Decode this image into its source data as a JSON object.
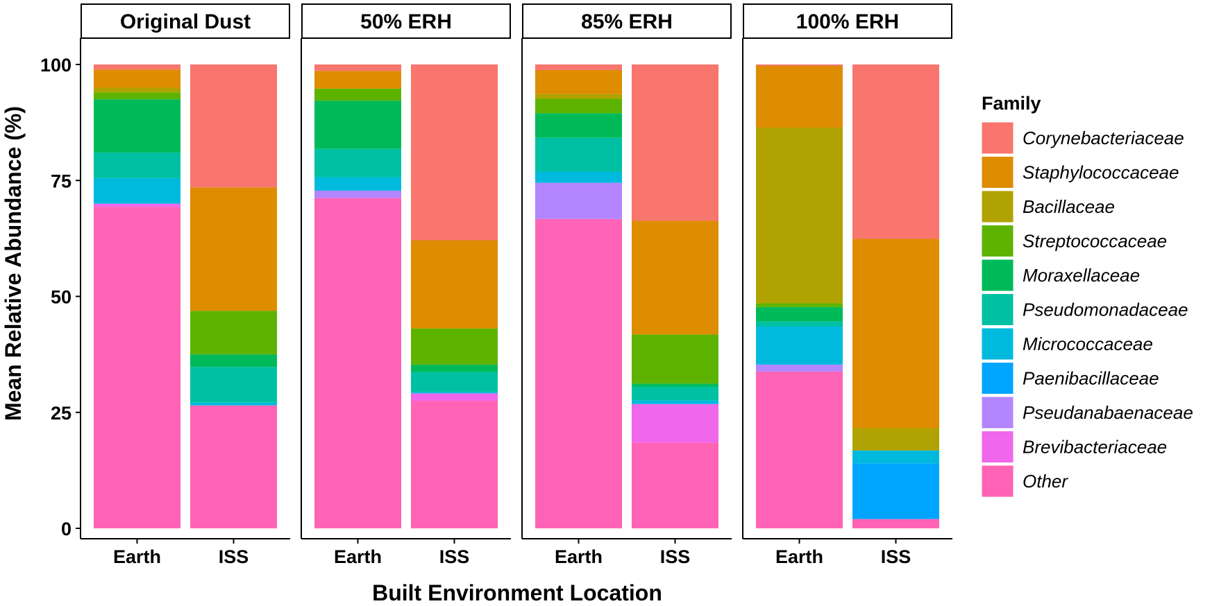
{
  "chart_data": {
    "type": "bar",
    "stacked": true,
    "xlabel": "Built Environment Location",
    "ylabel": "Mean Relative Abundance (%)",
    "ylim": [
      0,
      100
    ],
    "yticks": [
      "0",
      "25",
      "50",
      "75",
      "100"
    ],
    "categories": [
      "Earth",
      "ISS"
    ],
    "grid": false,
    "legend": {
      "title": "Family",
      "placement": "right",
      "entries": [
        {
          "name": "Corynebacteriaceae",
          "color": "#F8766D"
        },
        {
          "name": "Staphylococcaceae",
          "color": "#DE8C00"
        },
        {
          "name": "Bacillaceae",
          "color": "#B0A200"
        },
        {
          "name": "Streptococcaceae",
          "color": "#5EB300"
        },
        {
          "name": "Moraxellaceae",
          "color": "#00BA5A"
        },
        {
          "name": "Pseudomonadaceae",
          "color": "#00C0A3"
        },
        {
          "name": "Micrococcaceae",
          "color": "#00BADE"
        },
        {
          "name": "Paenibacillaceae",
          "color": "#00A5FF"
        },
        {
          "name": "Pseudanabaenaceae",
          "color": "#B385FF"
        },
        {
          "name": "Brevibacteriaceae",
          "color": "#EF67EB"
        },
        {
          "name": "Other",
          "color": "#FF63B6"
        }
      ]
    },
    "stack_order_bottom_to_top": [
      "Other",
      "Brevibacteriaceae",
      "Pseudanabaenaceae",
      "Paenibacillaceae",
      "Micrococcaceae",
      "Pseudomonadaceae",
      "Moraxellaceae",
      "Streptococcaceae",
      "Bacillaceae",
      "Staphylococcaceae",
      "Corynebacteriaceae"
    ],
    "panels": [
      {
        "name": "Original Dust",
        "bars": [
          {
            "category": "Earth",
            "values": {
              "Other": 69.3,
              "Brevibacteriaceae": 0.7,
              "Pseudanabaenaceae": 0.0,
              "Paenibacillaceae": 0.0,
              "Micrococcaceae": 5.5,
              "Pseudomonadaceae": 5.5,
              "Moraxellaceae": 11.5,
              "Streptococcaceae": 1.5,
              "Bacillaceae": 1.0,
              "Staphylococcaceae": 3.9,
              "Corynebacteriaceae": 1.1
            }
          },
          {
            "category": "ISS",
            "values": {
              "Other": 26.5,
              "Brevibacteriaceae": 0.0,
              "Pseudanabaenaceae": 0.0,
              "Paenibacillaceae": 0.0,
              "Micrococcaceae": 0.6,
              "Pseudomonadaceae": 7.7,
              "Moraxellaceae": 2.7,
              "Streptococcaceae": 9.4,
              "Bacillaceae": 0.0,
              "Staphylococcaceae": 26.6,
              "Corynebacteriaceae": 26.5
            }
          }
        ]
      },
      {
        "name": "50% ERH",
        "bars": [
          {
            "category": "Earth",
            "values": {
              "Other": 71.2,
              "Brevibacteriaceae": 0.0,
              "Pseudanabaenaceae": 1.6,
              "Paenibacillaceae": 0.0,
              "Micrococcaceae": 2.9,
              "Pseudomonadaceae": 6.1,
              "Moraxellaceae": 10.4,
              "Streptococcaceae": 2.6,
              "Bacillaceae": 0.0,
              "Staphylococcaceae": 3.8,
              "Corynebacteriaceae": 1.4
            }
          },
          {
            "category": "ISS",
            "values": {
              "Other": 27.5,
              "Brevibacteriaceae": 1.6,
              "Pseudanabaenaceae": 0.0,
              "Paenibacillaceae": 0.0,
              "Micrococcaceae": 0.3,
              "Pseudomonadaceae": 4.3,
              "Moraxellaceae": 1.6,
              "Streptococcaceae": 7.8,
              "Bacillaceae": 0.0,
              "Staphylococcaceae": 19.0,
              "Corynebacteriaceae": 37.9
            }
          }
        ]
      },
      {
        "name": "85% ERH",
        "bars": [
          {
            "category": "Earth",
            "values": {
              "Other": 66.7,
              "Brevibacteriaceae": 0.0,
              "Pseudanabaenaceae": 7.8,
              "Paenibacillaceae": 0.0,
              "Micrococcaceae": 2.4,
              "Pseudomonadaceae": 7.3,
              "Moraxellaceae": 5.3,
              "Streptococcaceae": 3.1,
              "Bacillaceae": 1.0,
              "Staphylococcaceae": 5.2,
              "Corynebacteriaceae": 1.2
            }
          },
          {
            "category": "ISS",
            "values": {
              "Other": 18.5,
              "Brevibacteriaceae": 8.3,
              "Pseudanabaenaceae": 0.0,
              "Paenibacillaceae": 0.0,
              "Micrococcaceae": 0.8,
              "Pseudomonadaceae": 2.9,
              "Moraxellaceae": 0.7,
              "Streptococcaceae": 10.6,
              "Bacillaceae": 0.0,
              "Staphylococcaceae": 24.5,
              "Corynebacteriaceae": 33.7
            }
          }
        ]
      },
      {
        "name": "100% ERH",
        "bars": [
          {
            "category": "Earth",
            "values": {
              "Other": 33.8,
              "Brevibacteriaceae": 0.0,
              "Pseudanabaenaceae": 1.5,
              "Paenibacillaceae": 0.0,
              "Micrococcaceae": 8.2,
              "Pseudomonadaceae": 1.1,
              "Moraxellaceae": 3.1,
              "Streptococcaceae": 0.8,
              "Bacillaceae": 37.9,
              "Staphylococcaceae": 13.3,
              "Corynebacteriaceae": 0.3
            }
          },
          {
            "category": "ISS",
            "values": {
              "Other": 2.0,
              "Brevibacteriaceae": 0.0,
              "Pseudanabaenaceae": 0.0,
              "Paenibacillaceae": 12.0,
              "Micrococcaceae": 2.8,
              "Pseudomonadaceae": 0.0,
              "Moraxellaceae": 0.0,
              "Streptococcaceae": 0.0,
              "Bacillaceae": 4.8,
              "Staphylococcaceae": 40.8,
              "Corynebacteriaceae": 37.6
            }
          }
        ]
      }
    ]
  }
}
